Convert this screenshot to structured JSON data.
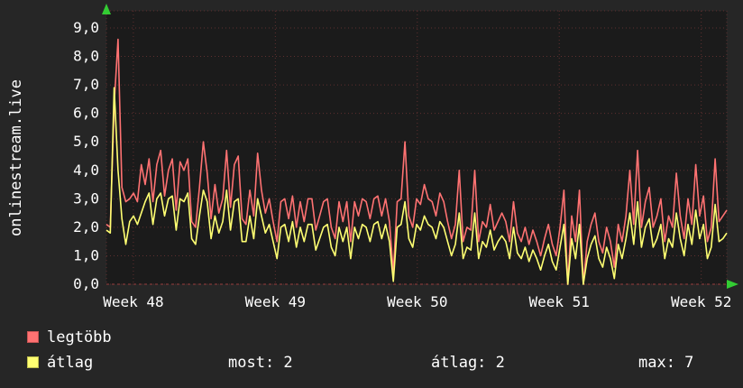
{
  "panel": {
    "bg_color": "#262626",
    "text_color": "#ffffff"
  },
  "side_title": "onlinestream.live",
  "legend": {
    "items": [
      {
        "label": "legtöbb",
        "color": "#ff7272",
        "border": "#c85454"
      },
      {
        "label": "átlag",
        "color": "#ffff72",
        "border": "#bdbd4e"
      }
    ],
    "stats": [
      {
        "text": "most: 2"
      },
      {
        "text": "átlag: 2"
      },
      {
        "text": "max: 7"
      }
    ]
  },
  "chart_data": {
    "type": "line",
    "title": "",
    "xlabel": "",
    "ylabel": "onlinestream.live",
    "grid": "dotted",
    "legend_position": "bottom-left",
    "plot_bg": "#1b1b1b",
    "grid_color": "#5e2f2f",
    "axis_color": "#993c3c",
    "axis_arrow_color": "#33cc33",
    "ylim": [
      0,
      9.6
    ],
    "x_domain_weeks": [
      47.81,
      52.18
    ],
    "yticks": [
      0,
      1,
      2,
      3,
      4,
      5,
      6,
      7,
      8,
      9
    ],
    "ytick_labels": [
      "0,0",
      "1,0",
      "2,0",
      "3,0",
      "4,0",
      "5,0",
      "6,0",
      "7,0",
      "8,0",
      "9,0"
    ],
    "xticks": [
      48,
      49,
      50,
      51,
      52
    ],
    "xtick_labels": [
      "Week 48",
      "Week 49",
      "Week 50",
      "Week 51",
      "Week 52"
    ],
    "stats": {
      "most": 2,
      "atlag": 2,
      "max": 7
    },
    "series": [
      {
        "name": "legtöbb",
        "color": "#ff7272",
        "values": [
          2.1,
          2.0,
          6.3,
          8.6,
          3.4,
          2.9,
          3.0,
          3.2,
          2.9,
          4.2,
          3.5,
          4.4,
          2.9,
          4.2,
          4.7,
          3.1,
          4.0,
          4.4,
          2.6,
          4.3,
          4.0,
          4.4,
          2.2,
          2.0,
          3.4,
          5.0,
          3.9,
          2.3,
          3.5,
          2.5,
          3.0,
          4.7,
          2.7,
          4.2,
          4.5,
          2.3,
          2.1,
          3.3,
          2.4,
          4.6,
          3.3,
          2.5,
          3.0,
          2.2,
          1.5,
          2.9,
          3.0,
          2.3,
          3.1,
          2.0,
          2.9,
          2.2,
          3.0,
          3.0,
          1.9,
          2.4,
          2.9,
          3.0,
          2.0,
          1.6,
          2.9,
          2.2,
          2.9,
          1.5,
          2.9,
          2.4,
          3.0,
          2.9,
          2.3,
          3.0,
          3.1,
          2.4,
          3.0,
          2.2,
          0.4,
          2.9,
          3.0,
          5.0,
          2.4,
          2.0,
          3.0,
          2.8,
          3.5,
          3.0,
          2.9,
          2.4,
          3.2,
          2.9,
          2.2,
          1.6,
          2.1,
          4.0,
          1.5,
          2.0,
          1.9,
          4.0,
          1.5,
          2.2,
          2.0,
          2.8,
          1.9,
          2.2,
          2.5,
          2.2,
          1.5,
          2.9,
          1.8,
          1.5,
          2.0,
          1.4,
          1.9,
          1.5,
          1.0,
          1.6,
          2.1,
          1.4,
          1.0,
          2.0,
          3.3,
          0.0,
          2.4,
          1.5,
          3.3,
          0.0,
          1.5,
          2.1,
          2.5,
          1.5,
          1.1,
          2.0,
          1.5,
          0.6,
          2.1,
          1.5,
          2.4,
          4.0,
          2.1,
          4.7,
          2.0,
          2.9,
          3.4,
          2.0,
          2.4,
          3.0,
          1.5,
          2.4,
          2.0,
          3.9,
          2.4,
          1.6,
          3.0,
          2.1,
          4.2,
          2.4,
          3.1,
          1.5,
          2.0,
          4.4,
          2.2,
          2.4,
          2.6
        ]
      },
      {
        "name": "átlag",
        "color": "#ffff72",
        "values": [
          1.9,
          1.8,
          6.9,
          4.0,
          2.3,
          1.4,
          2.2,
          2.4,
          2.1,
          2.5,
          2.9,
          3.2,
          2.1,
          3.0,
          3.2,
          2.4,
          3.0,
          3.1,
          1.9,
          3.0,
          2.9,
          3.2,
          1.6,
          1.4,
          2.4,
          3.3,
          2.9,
          1.6,
          2.4,
          1.8,
          2.2,
          3.3,
          1.9,
          2.9,
          3.0,
          1.5,
          1.5,
          2.4,
          1.6,
          3.0,
          2.4,
          1.8,
          2.1,
          1.5,
          0.9,
          2.0,
          2.1,
          1.5,
          2.2,
          1.3,
          2.0,
          1.5,
          2.1,
          2.1,
          1.2,
          1.6,
          2.0,
          2.1,
          1.3,
          1.0,
          2.0,
          1.5,
          2.0,
          0.9,
          2.0,
          1.6,
          2.1,
          2.0,
          1.5,
          2.1,
          2.2,
          1.6,
          2.1,
          1.5,
          0.1,
          2.0,
          2.1,
          2.9,
          1.6,
          1.3,
          2.1,
          1.9,
          2.4,
          2.1,
          2.0,
          1.6,
          2.2,
          2.0,
          1.5,
          1.0,
          1.4,
          2.5,
          0.9,
          1.3,
          1.2,
          2.5,
          0.9,
          1.5,
          1.3,
          1.9,
          1.2,
          1.5,
          1.7,
          1.5,
          0.9,
          2.0,
          1.1,
          0.9,
          1.3,
          0.8,
          1.2,
          0.9,
          0.5,
          1.0,
          1.4,
          0.8,
          0.5,
          1.3,
          2.1,
          0.0,
          1.6,
          0.9,
          2.1,
          0.0,
          0.9,
          1.4,
          1.7,
          0.9,
          0.6,
          1.3,
          0.9,
          0.2,
          1.4,
          0.9,
          1.6,
          2.5,
          1.4,
          2.9,
          1.3,
          2.0,
          2.3,
          1.3,
          1.6,
          2.1,
          0.9,
          1.6,
          1.3,
          2.5,
          1.6,
          1.0,
          2.1,
          1.4,
          2.6,
          1.6,
          2.1,
          0.9,
          1.3,
          2.8,
          1.5,
          1.6,
          1.8
        ]
      }
    ]
  }
}
